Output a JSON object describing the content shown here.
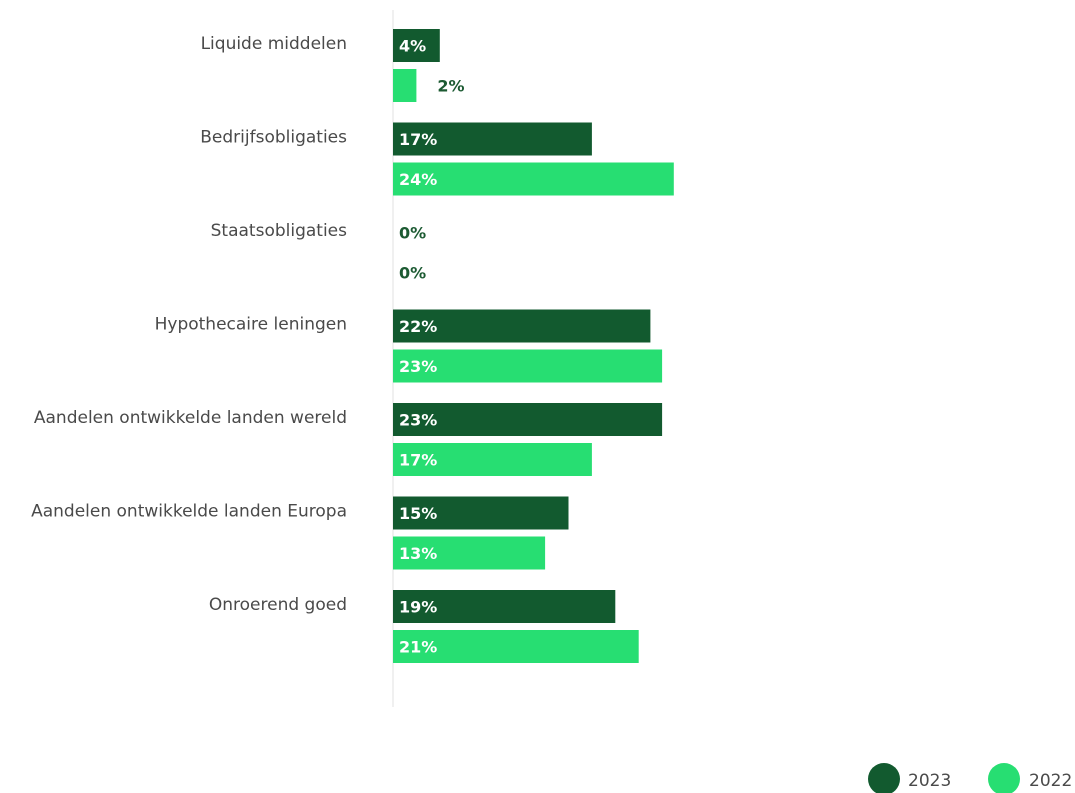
{
  "chart_data": {
    "type": "bar",
    "orientation": "horizontal",
    "categories": [
      "Liquide middelen",
      "Bedrijfsobligaties",
      "Staatsobligaties",
      "Hypothecaire leningen",
      "Aandelen ontwikkelde landen wereld",
      "Aandelen ontwikkelde landen Europa",
      "Onroerend goed"
    ],
    "series": [
      {
        "name": "2023",
        "color": "#125a2f",
        "values": [
          4,
          17,
          0,
          22,
          23,
          15,
          19
        ],
        "labels": [
          "4%",
          "17%",
          "0%",
          "22%",
          "23%",
          "15%",
          "19%"
        ]
      },
      {
        "name": "2022",
        "color": "#27de72",
        "values": [
          2,
          24,
          0,
          23,
          17,
          13,
          21
        ],
        "labels": [
          "2%",
          "24%",
          "0%",
          "23%",
          "17%",
          "13%",
          "21%"
        ]
      }
    ],
    "value_unit": "%",
    "xlim": [
      0,
      25
    ],
    "grid": false,
    "legend_position": "bottom-right"
  }
}
